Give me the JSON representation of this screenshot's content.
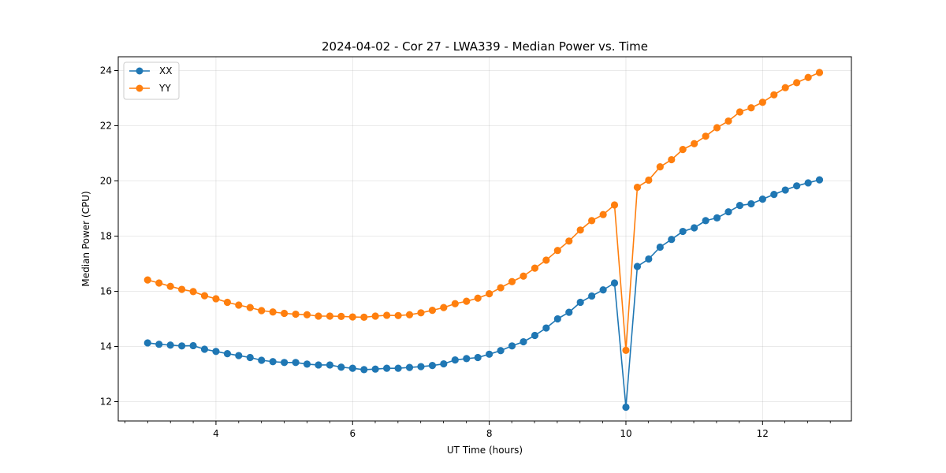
{
  "chart_data": {
    "type": "line",
    "title": "2024-04-02 - Cor 27 - LWA339 - Median Power vs. Time",
    "xlabel": "UT Time (hours)",
    "ylabel": "Median Power (CPU)",
    "xlim": [
      2.57,
      13.3
    ],
    "ylim": [
      11.3,
      24.5
    ],
    "xticks": [
      4,
      6,
      8,
      10,
      12
    ],
    "xticks_minor_step": 0.333,
    "yticks": [
      12,
      14,
      16,
      18,
      20,
      22,
      24
    ],
    "grid": true,
    "legend_position": "top-left",
    "x": [
      3.0,
      3.167,
      3.333,
      3.5,
      3.667,
      3.833,
      4.0,
      4.167,
      4.333,
      4.5,
      4.667,
      4.833,
      5.0,
      5.167,
      5.333,
      5.5,
      5.667,
      5.833,
      6.0,
      6.167,
      6.333,
      6.5,
      6.667,
      6.833,
      7.0,
      7.167,
      7.333,
      7.5,
      7.667,
      7.833,
      8.0,
      8.167,
      8.333,
      8.5,
      8.667,
      8.833,
      9.0,
      9.167,
      9.333,
      9.5,
      9.667,
      9.833,
      10.0,
      10.167,
      10.333,
      10.5,
      10.667,
      10.833,
      11.0,
      11.167,
      11.333,
      11.5,
      11.667,
      11.833,
      12.0,
      12.167,
      12.333,
      12.5,
      12.667,
      12.833
    ],
    "series": [
      {
        "name": "XX",
        "color": "#1f77b4",
        "values": [
          14.13,
          14.08,
          14.05,
          14.02,
          14.03,
          13.9,
          13.82,
          13.74,
          13.67,
          13.6,
          13.5,
          13.45,
          13.42,
          13.42,
          13.36,
          13.33,
          13.33,
          13.25,
          13.21,
          13.16,
          13.18,
          13.21,
          13.21,
          13.24,
          13.27,
          13.31,
          13.37,
          13.51,
          13.56,
          13.6,
          13.72,
          13.85,
          14.02,
          14.17,
          14.4,
          14.67,
          15.0,
          15.24,
          15.6,
          15.83,
          16.05,
          16.3,
          11.8,
          16.9,
          17.17,
          17.6,
          17.88,
          18.17,
          18.3,
          18.56,
          18.66,
          18.88,
          19.11,
          19.17,
          19.34,
          19.51,
          19.67,
          19.82,
          19.93,
          20.04
        ]
      },
      {
        "name": "YY",
        "color": "#ff7f0e",
        "values": [
          16.41,
          16.3,
          16.18,
          16.07,
          15.99,
          15.84,
          15.73,
          15.6,
          15.5,
          15.41,
          15.3,
          15.25,
          15.2,
          15.17,
          15.15,
          15.1,
          15.1,
          15.09,
          15.07,
          15.06,
          15.1,
          15.13,
          15.12,
          15.15,
          15.22,
          15.31,
          15.41,
          15.55,
          15.64,
          15.75,
          15.91,
          16.13,
          16.35,
          16.55,
          16.84,
          17.13,
          17.48,
          17.82,
          18.22,
          18.56,
          18.78,
          19.13,
          13.86,
          19.77,
          20.03,
          20.51,
          20.77,
          21.14,
          21.35,
          21.62,
          21.93,
          22.17,
          22.5,
          22.65,
          22.85,
          23.12,
          23.38,
          23.56,
          23.75,
          23.93
        ]
      }
    ]
  }
}
